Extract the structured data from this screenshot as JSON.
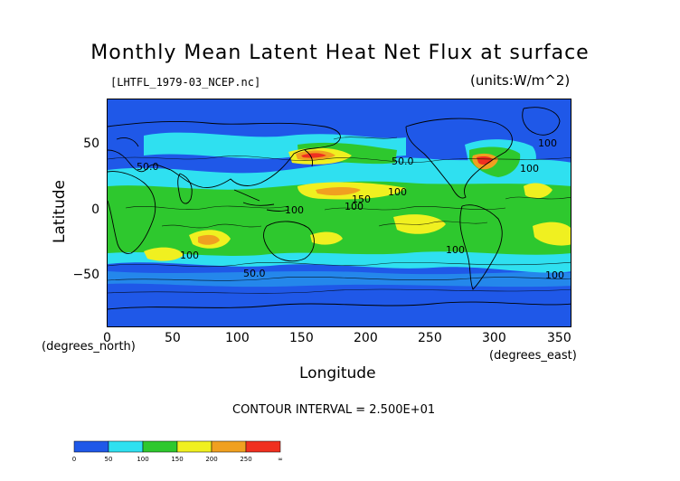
{
  "title": "Monthly Mean Latent Heat Net Flux at surface",
  "filename": "[LHTFL_1979-03_NCEP.nc]",
  "units": "(units:W/m^2)",
  "axes": {
    "x_label": "Longitude",
    "x_unit": "(degrees_east)",
    "y_label": "Latitude",
    "y_unit": "(degrees_north)",
    "x_ticks": [
      "0",
      "50",
      "100",
      "150",
      "200",
      "250",
      "300",
      "350"
    ],
    "y_ticks": [
      "50",
      "0",
      "−50"
    ]
  },
  "contour_interval": "CONTOUR INTERVAL = 2.500E+01",
  "colorbar": {
    "labels": [
      "0",
      "50",
      "100",
      "150",
      "200",
      "250",
      "∞"
    ],
    "colors": [
      "#1f58e8",
      "#2fe0f0",
      "#2ec82e",
      "#f0f020",
      "#f0a020",
      "#f03020"
    ]
  },
  "contour_labels": [
    "100",
    "50.0",
    "100",
    "150",
    "100",
    "100",
    "50.0",
    "100",
    "50.0",
    "100",
    "100",
    "100"
  ]
}
